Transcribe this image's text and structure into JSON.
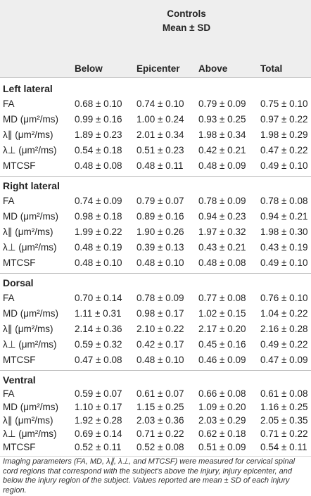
{
  "header": {
    "group": "Controls",
    "stat": "Mean ± SD",
    "columns": [
      "Below",
      "Epicenter",
      "Above",
      "Total"
    ]
  },
  "sections": [
    {
      "title": "Left lateral",
      "rows": [
        {
          "param": "FA",
          "values": [
            "0.68 ± 0.10",
            "0.74 ± 0.10",
            "0.79 ± 0.09",
            "0.75 ± 0.10"
          ]
        },
        {
          "param": "MD (μm²/ms)",
          "values": [
            "0.99 ± 0.16",
            "1.00 ± 0.24",
            "0.93 ± 0.25",
            "0.97 ± 0.22"
          ]
        },
        {
          "param": "λ∥ (μm²/ms)",
          "values": [
            "1.89 ± 0.23",
            "2.01 ± 0.34",
            "1.98 ± 0.34",
            "1.98 ± 0.29"
          ]
        },
        {
          "param": "λ⊥ (μm²/ms)",
          "values": [
            "0.54 ± 0.18",
            "0.51 ± 0.23",
            "0.42 ± 0.21",
            "0.47 ± 0.22"
          ]
        },
        {
          "param": "MTCSF",
          "values": [
            "0.48 ± 0.08",
            "0.48 ± 0.11",
            "0.48 ± 0.09",
            "0.49 ± 0.10"
          ]
        }
      ]
    },
    {
      "title": "Right lateral",
      "rows": [
        {
          "param": "FA",
          "values": [
            "0.74 ± 0.09",
            "0.79 ± 0.07",
            "0.78 ± 0.09",
            "0.78 ± 0.08"
          ]
        },
        {
          "param": "MD (μm²/ms)",
          "values": [
            "0.98 ± 0.18",
            "0.89 ± 0.16",
            "0.94 ± 0.23",
            "0.94 ± 0.21"
          ]
        },
        {
          "param": "λ∥ (μm²/ms)",
          "values": [
            "1.99 ± 0.22",
            "1.90 ± 0.26",
            "1.97 ± 0.32",
            "1.98 ± 0.30"
          ]
        },
        {
          "param": "λ⊥ (μm²/ms)",
          "values": [
            "0.48 ± 0.19",
            "0.39 ± 0.13",
            "0.43 ± 0.21",
            "0.43 ± 0.19"
          ]
        },
        {
          "param": "MTCSF",
          "values": [
            "0.48 ± 0.10",
            "0.48 ± 0.10",
            "0.48 ± 0.08",
            "0.49 ± 0.10"
          ]
        }
      ]
    },
    {
      "title": "Dorsal",
      "rows": [
        {
          "param": "FA",
          "values": [
            "0.70 ± 0.14",
            "0.78 ± 0.09",
            "0.77 ± 0.08",
            "0.76 ± 0.10"
          ]
        },
        {
          "param": "MD (μm²/ms)",
          "values": [
            "1.11 ± 0.31",
            "0.98 ± 0.17",
            "1.02 ± 0.15",
            "1.04 ± 0.22"
          ]
        },
        {
          "param": "λ∥ (μm²/ms)",
          "values": [
            "2.14 ± 0.36",
            "2.10 ± 0.22",
            "2.17 ± 0.20",
            "2.16 ± 0.28"
          ]
        },
        {
          "param": "λ⊥ (μm²/ms)",
          "values": [
            "0.59 ± 0.32",
            "0.42 ± 0.17",
            "0.45 ± 0.16",
            "0.49 ± 0.22"
          ]
        },
        {
          "param": "MTCSF",
          "values": [
            "0.47 ± 0.08",
            "0.48 ± 0.10",
            "0.46 ± 0.09",
            "0.47 ± 0.09"
          ]
        }
      ]
    },
    {
      "title": "Ventral",
      "rows": [
        {
          "param": "FA",
          "values": [
            "0.59 ± 0.07",
            "0.61 ± 0.07",
            "0.66 ± 0.08",
            "0.61 ± 0.08"
          ]
        },
        {
          "param": "MD (μm²/ms)",
          "values": [
            "1.10 ± 0.17",
            "1.15 ± 0.25",
            "1.09 ± 0.20",
            "1.16 ± 0.25"
          ]
        },
        {
          "param": "λ∥ (μm²/ms)",
          "values": [
            "1.92 ± 0.28",
            "2.03 ± 0.36",
            "2.03 ± 0.29",
            "2.05 ± 0.35"
          ]
        },
        {
          "param": "λ⊥ (μm²/ms)",
          "values": [
            "0.69 ± 0.14",
            "0.71 ± 0.22",
            "0.62 ± 0.18",
            "0.71 ± 0.22"
          ]
        },
        {
          "param": "MTCSF",
          "values": [
            "0.52 ± 0.11",
            "0.52 ± 0.08",
            "0.51 ± 0.09",
            "0.54 ± 0.11"
          ]
        }
      ]
    }
  ],
  "footnote": "Imaging parameters (FA, MD, λ∥, λ⊥, and MTCSF) were measured for cervical spinal cord regions that correspond with the subject's above the injury, injury epicenter, and below the injury region of the subject. Values reported are mean ± SD of each injury region."
}
